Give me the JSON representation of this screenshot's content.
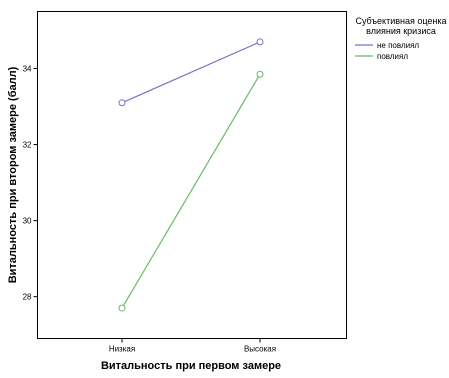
{
  "chart_data": {
    "type": "line",
    "categories": [
      "Низкая",
      "Высокая"
    ],
    "series": [
      {
        "name": "не повлиял",
        "values": [
          33.1,
          34.7
        ],
        "color": "#8070c8"
      },
      {
        "name": "повлиял",
        "values": [
          27.7,
          33.85
        ],
        "color": "#66bb66"
      }
    ],
    "xlabel": "Витальность при первом замере",
    "ylabel": "Витальность при втором замере (балл)",
    "ylim": [
      26.9,
      35.5
    ],
    "yticks": [
      28,
      30,
      32,
      34
    ],
    "ytick_labels": [
      "28",
      "30",
      "32",
      "34"
    ],
    "grid": false,
    "marker": "open-circle",
    "legend": {
      "title_lines": [
        "Субъективная оценка",
        "влияния кризиса"
      ],
      "placement": "right-outside"
    }
  }
}
